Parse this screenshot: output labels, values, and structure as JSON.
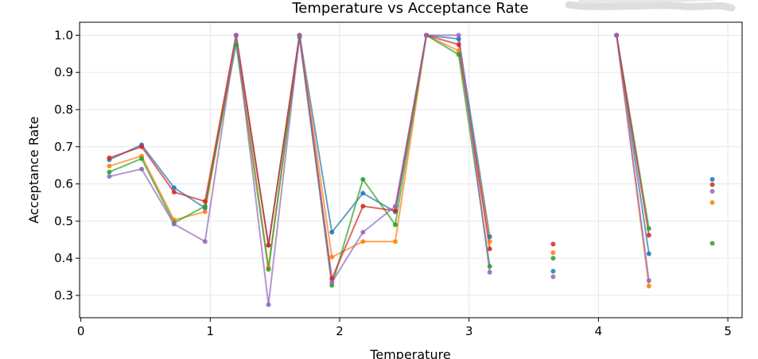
{
  "chart_data": {
    "type": "line",
    "title": "Temperature vs Acceptance Rate",
    "xlabel": "Temperature",
    "ylabel": "Acceptance Rate",
    "xlim": [
      -0.01,
      5.11
    ],
    "ylim": [
      0.24,
      1.035
    ],
    "xticks": [
      0,
      1,
      2,
      3,
      4,
      5
    ],
    "yticks": [
      0.3,
      0.4,
      0.5,
      0.6,
      0.7,
      0.8,
      0.9,
      1.0
    ],
    "ytick_labels": [
      "0.3",
      "0.4",
      "0.5",
      "0.6",
      "0.7",
      "0.8",
      "0.9",
      "1.0"
    ],
    "grid": true,
    "legend": "none",
    "x": [
      0.22,
      0.47,
      0.72,
      0.96,
      1.2,
      1.45,
      1.69,
      1.94,
      2.18,
      2.43,
      2.67,
      2.92,
      3.16,
      3.65,
      4.14,
      4.39,
      4.88
    ],
    "series": [
      {
        "color": "#1f77b4",
        "values": [
          0.665,
          0.705,
          0.59,
          0.535,
          1.0,
          0.435,
          1.0,
          0.47,
          0.575,
          0.525,
          1.0,
          0.99,
          0.458,
          0.365,
          1.0,
          0.412,
          0.612
        ]
      },
      {
        "color": "#ff7f0e",
        "values": [
          0.648,
          0.675,
          0.503,
          0.525,
          1.0,
          0.375,
          1.0,
          0.403,
          0.445,
          0.445,
          1.0,
          0.958,
          0.445,
          0.415,
          1.0,
          0.325,
          0.55
        ]
      },
      {
        "color": "#2ca02c",
        "values": [
          0.632,
          0.668,
          0.495,
          0.54,
          0.975,
          0.37,
          0.995,
          0.327,
          0.612,
          0.49,
          1.0,
          0.948,
          0.378,
          0.4,
          1.0,
          0.48,
          0.44
        ]
      },
      {
        "color": "#d62728",
        "values": [
          0.67,
          0.7,
          0.578,
          0.553,
          1.0,
          0.435,
          1.0,
          0.345,
          0.54,
          0.528,
          1.0,
          0.975,
          0.425,
          0.438,
          1.0,
          0.462,
          0.598
        ]
      },
      {
        "color": "#9467bd",
        "values": [
          0.62,
          0.64,
          0.492,
          0.445,
          1.0,
          0.275,
          1.0,
          0.335,
          0.47,
          0.54,
          1.0,
          1.0,
          0.362,
          0.35,
          1.0,
          0.34,
          0.58
        ]
      }
    ],
    "line_segments_between_index_pairs": [
      [
        0,
        1
      ],
      [
        1,
        2
      ],
      [
        2,
        3
      ],
      [
        3,
        4
      ],
      [
        4,
        5
      ],
      [
        5,
        6
      ],
      [
        6,
        7
      ],
      [
        7,
        8
      ],
      [
        8,
        9
      ],
      [
        9,
        10
      ],
      [
        10,
        11
      ],
      [
        11,
        12
      ],
      [
        14,
        15
      ]
    ]
  }
}
